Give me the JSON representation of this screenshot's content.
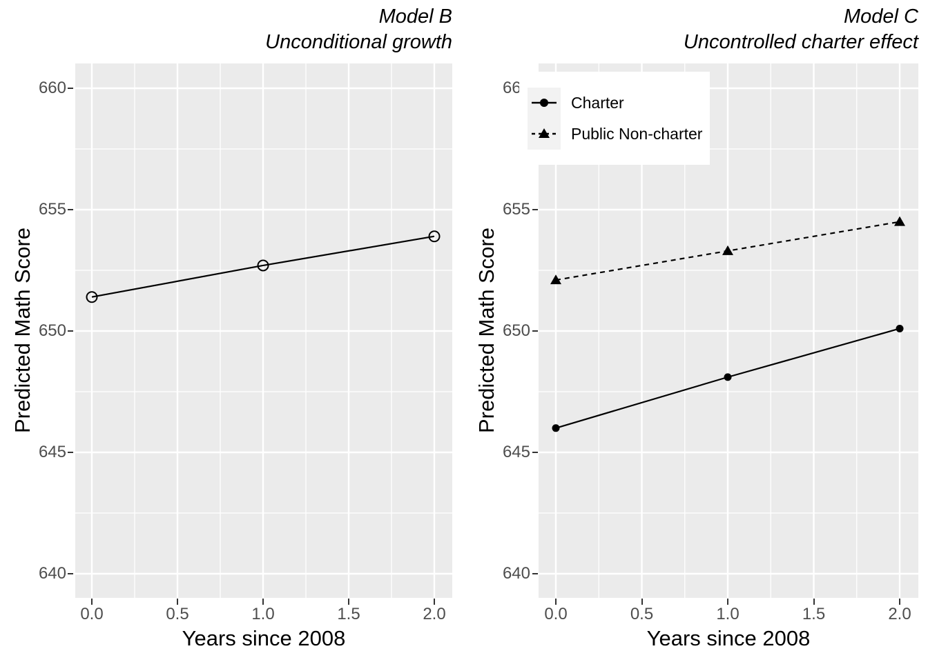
{
  "axes": {
    "x_label": "Years since 2008",
    "y_label": "Predicted Math Score",
    "x_tick_labels": [
      "0.0",
      "0.5",
      "1.0",
      "1.5",
      "2.0"
    ],
    "x_tick_values": [
      0,
      0.5,
      1,
      1.5,
      2
    ],
    "y_tick_labels": [
      "660",
      "655",
      "650",
      "645",
      "640"
    ],
    "y_tick_values": [
      660,
      655,
      650,
      645,
      640
    ],
    "grid": true
  },
  "chart_data": [
    {
      "type": "line",
      "panel": "left",
      "title": "Model B",
      "subtitle": "Unconditional growth",
      "xlabel": "Years since 2008",
      "ylabel": "Predicted Math Score",
      "x": [
        0,
        1,
        2
      ],
      "xlim": [
        -0.1,
        2.1
      ],
      "ylim": [
        639,
        661
      ],
      "x_ticks": [
        0,
        0.5,
        1,
        1.5,
        2
      ],
      "y_ticks": [
        640,
        645,
        650,
        655,
        660
      ],
      "series": [
        {
          "marker": "open-circle",
          "line": "solid",
          "values": [
            651.4,
            652.7,
            653.9
          ]
        }
      ]
    },
    {
      "type": "line",
      "panel": "right",
      "title": "Model C",
      "subtitle": "Uncontrolled charter effect",
      "xlabel": "Years since 2008",
      "ylabel": "Predicted Math Score",
      "x": [
        0,
        1,
        2
      ],
      "xlim": [
        -0.1,
        2.1
      ],
      "ylim": [
        639,
        661
      ],
      "x_ticks": [
        0,
        0.5,
        1,
        1.5,
        2
      ],
      "y_ticks": [
        640,
        645,
        650,
        655,
        660
      ],
      "legend_position": "top-left",
      "series": [
        {
          "name": "Charter",
          "marker": "filled-circle",
          "line": "solid",
          "values": [
            646.0,
            648.1,
            650.1
          ]
        },
        {
          "name": "Public Non-charter",
          "marker": "filled-triangle",
          "line": "dashed",
          "values": [
            652.1,
            653.3,
            654.5
          ]
        }
      ]
    }
  ],
  "colors": {
    "panel_background": "#EBEBEB",
    "gridline": "#FFFFFF",
    "tick_label": "#4D4D4D",
    "tick_mark": "#333333",
    "text": "#000000",
    "series": "#000000",
    "legend_background": "#FFFFFF",
    "legend_key_background": "#F2F2F2"
  }
}
